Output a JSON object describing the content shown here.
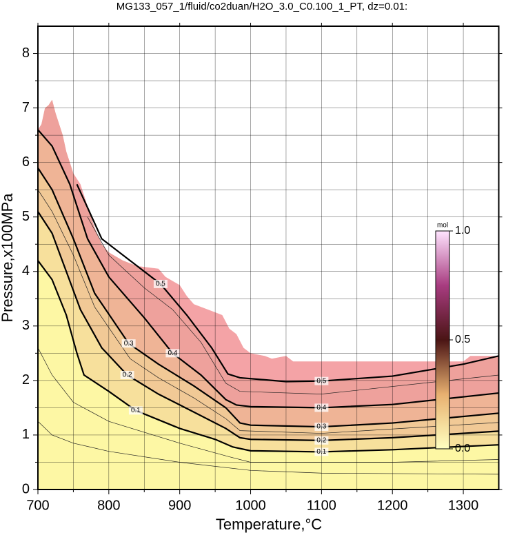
{
  "chart_data": {
    "type": "contour",
    "title": "MG133_057_1/fluid/co2duan/H2O_3.0_C0.100_1_PT, dz=0.01:",
    "x_label": "Temperature,°C",
    "y_label": "Pressure,x100MPa",
    "xlim": [
      700,
      1350
    ],
    "ylim": [
      0,
      8.5
    ],
    "xticks": [
      700,
      800,
      900,
      1000,
      1100,
      1200,
      1300
    ],
    "yticks": [
      0,
      1,
      2,
      3,
      4,
      5,
      6,
      7,
      8
    ],
    "minor_xticks": [
      750,
      850,
      950,
      1050,
      1150,
      1250
    ],
    "minor_yticks": [
      0.5,
      1.5,
      2.5,
      3.5,
      4.5,
      5.5,
      6.5,
      7.5
    ],
    "grid": true,
    "domain": {
      "color": "#f4a3a6",
      "x": [
        700,
        705,
        710,
        715,
        720,
        725,
        730,
        735,
        740,
        745,
        750,
        760,
        770,
        780,
        790,
        800,
        820,
        840,
        870,
        880,
        900,
        910,
        920,
        950,
        960,
        970,
        980,
        990,
        1000,
        1020,
        1030,
        1050,
        1060,
        1300,
        1310,
        1350
      ],
      "y": [
        6.6,
        6.7,
        7.0,
        7.05,
        7.15,
        6.9,
        6.7,
        6.5,
        6.2,
        6.0,
        5.8,
        5.6,
        5.2,
        4.8,
        4.5,
        4.35,
        4.2,
        4.1,
        4.05,
        3.9,
        3.75,
        3.55,
        3.4,
        3.25,
        3.2,
        2.95,
        2.85,
        2.6,
        2.5,
        2.45,
        2.4,
        2.45,
        2.35,
        2.35,
        2.45,
        2.45
      ]
    },
    "contours": [
      {
        "level": 0.5,
        "color": "#eea19c",
        "x": [
          755,
          790,
          830,
          873,
          910,
          945,
          968,
          985,
          1050,
          1100,
          1200,
          1300,
          1350
        ],
        "y": [
          5.6,
          4.6,
          4.2,
          3.77,
          3.2,
          2.6,
          2.12,
          2.05,
          1.98,
          1.99,
          2.08,
          2.3,
          2.45
        ]
      },
      {
        "level": 0.4,
        "color": "#efb496",
        "x": [
          700,
          720,
          745,
          770,
          800,
          850,
          890,
          930,
          965,
          980,
          1000,
          1100,
          1200,
          1350
        ],
        "y": [
          6.6,
          6.3,
          5.6,
          4.6,
          3.9,
          3.15,
          2.5,
          2.1,
          1.65,
          1.55,
          1.52,
          1.5,
          1.56,
          1.77
        ]
      },
      {
        "level": 0.3,
        "color": "#f1c996",
        "x": [
          700,
          720,
          750,
          780,
          828,
          870,
          920,
          965,
          985,
          1000,
          1100,
          1200,
          1350
        ],
        "y": [
          5.9,
          5.5,
          4.6,
          3.6,
          2.68,
          2.3,
          1.9,
          1.5,
          1.22,
          1.18,
          1.15,
          1.22,
          1.4
        ]
      },
      {
        "level": 0.2,
        "color": "#f7e09c",
        "x": [
          700,
          720,
          740,
          760,
          790,
          826,
          870,
          920,
          965,
          985,
          1000,
          1100,
          1200,
          1350
        ],
        "y": [
          5.1,
          4.7,
          4.0,
          3.3,
          2.6,
          2.1,
          1.75,
          1.42,
          1.12,
          0.95,
          0.92,
          0.9,
          0.95,
          1.07
        ]
      },
      {
        "level": 0.1,
        "color": "#fdf7a4",
        "x": [
          700,
          720,
          740,
          755,
          765,
          800,
          838,
          900,
          950,
          975,
          1000,
          1100,
          1200,
          1350
        ],
        "y": [
          4.2,
          3.85,
          3.2,
          2.5,
          2.1,
          1.8,
          1.45,
          1.12,
          0.92,
          0.78,
          0.71,
          0.69,
          0.73,
          0.82
        ]
      }
    ],
    "minor_contours": [
      {
        "level": 0.45,
        "x": [
          770,
          800,
          850,
          890,
          930,
          965,
          985,
          1100,
          1350
        ],
        "y": [
          5.0,
          4.3,
          3.7,
          3.3,
          2.7,
          1.95,
          1.8,
          1.75,
          2.1
        ]
      },
      {
        "level": 0.25,
        "x": [
          700,
          720,
          750,
          780,
          830,
          870,
          920,
          965,
          985,
          1100,
          1350
        ],
        "y": [
          5.5,
          5.1,
          4.3,
          3.35,
          2.4,
          2.05,
          1.68,
          1.3,
          1.08,
          1.03,
          1.23
        ]
      },
      {
        "level": 0.05,
        "x": [
          700,
          720,
          750,
          800,
          900,
          970,
          1000,
          1200,
          1350
        ],
        "y": [
          2.6,
          2.1,
          1.6,
          1.25,
          0.85,
          0.6,
          0.5,
          0.5,
          0.55
        ]
      },
      {
        "level": 0.02,
        "x": [
          700,
          720,
          750,
          800,
          900,
          1000,
          1100,
          1350
        ],
        "y": [
          1.25,
          1.0,
          0.85,
          0.7,
          0.5,
          0.35,
          0.3,
          0.28
        ]
      }
    ],
    "colorbar": {
      "title": "mol",
      "range": [
        0,
        1
      ],
      "ticks": [
        {
          "value": 0,
          "label": "0.0"
        },
        {
          "value": 0.5,
          "label": "0.5"
        },
        {
          "value": 1,
          "label": "1.0"
        }
      ],
      "stops": [
        {
          "value": 0,
          "color": "#ffffc0"
        },
        {
          "value": 0.25,
          "color": "#e8b070"
        },
        {
          "value": 0.5,
          "color": "#4a1414"
        },
        {
          "value": 0.75,
          "color": "#a83c80"
        },
        {
          "value": 1,
          "color": "#ffe4ff"
        }
      ]
    }
  }
}
